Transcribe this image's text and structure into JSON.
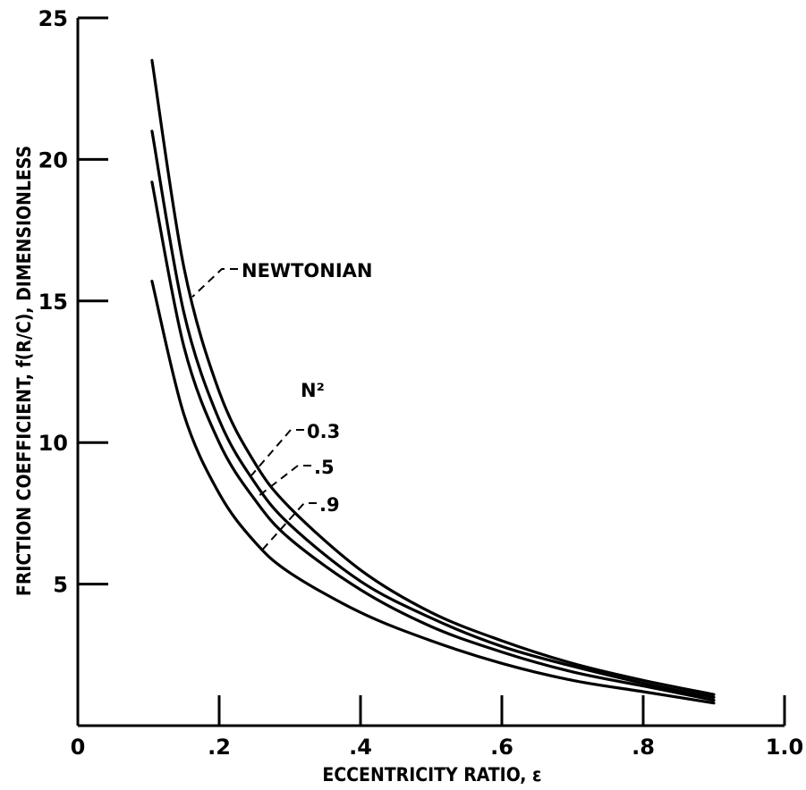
{
  "chart_data": {
    "type": "line",
    "title": "",
    "xlabel": "ECCENTRICITY RATIO, ε",
    "ylabel": "FRICTION COEFFICIENT, f(R/C), DIMENSIONLESS",
    "xlim": [
      0,
      1.0
    ],
    "ylim": [
      0,
      25
    ],
    "x_ticks": [
      0,
      0.2,
      0.4,
      0.6,
      0.8,
      1.0
    ],
    "x_tick_labels": [
      "0",
      ".2",
      ".4",
      ".6",
      ".8",
      "1.0"
    ],
    "y_ticks": [
      5,
      10,
      15,
      20,
      25
    ],
    "y_tick_labels": [
      "5",
      "10",
      "15",
      "20",
      "25"
    ],
    "grid": false,
    "legend_title": "N²",
    "x": [
      0.105,
      0.15,
      0.2,
      0.25,
      0.3,
      0.4,
      0.5,
      0.6,
      0.7,
      0.8,
      0.9
    ],
    "series": [
      {
        "name": "NEWTONIAN",
        "values": [
          23.5,
          16.2,
          11.8,
          9.3,
          7.7,
          5.5,
          4.0,
          3.0,
          2.2,
          1.6,
          1.1
        ]
      },
      {
        "name": "0.3",
        "values": [
          21.0,
          14.6,
          10.8,
          8.6,
          7.1,
          5.1,
          3.8,
          2.8,
          2.1,
          1.5,
          1.0
        ]
      },
      {
        "name": ".5",
        "values": [
          19.2,
          13.4,
          10.0,
          8.0,
          6.6,
          4.8,
          3.5,
          2.6,
          1.9,
          1.4,
          0.9
        ]
      },
      {
        "name": ".9",
        "values": [
          15.7,
          11.0,
          8.2,
          6.5,
          5.4,
          4.0,
          3.0,
          2.2,
          1.6,
          1.2,
          0.8
        ]
      }
    ]
  }
}
